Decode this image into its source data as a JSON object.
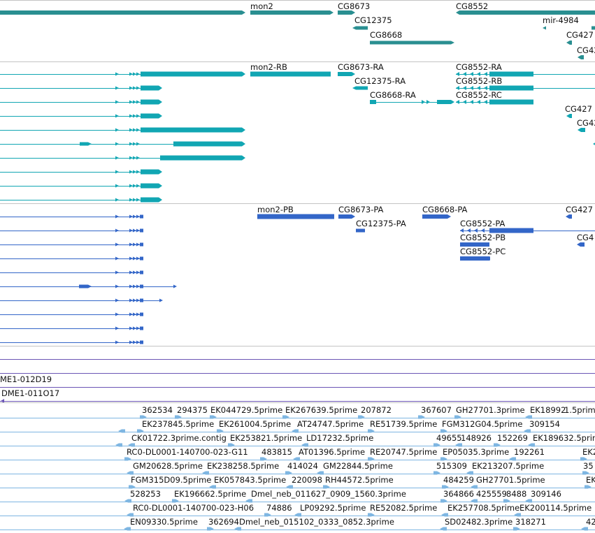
{
  "colors": {
    "gene": "#2a8f91",
    "transcript": "#11a6b3",
    "protein": "#3366c8",
    "est": "#7eb6e2",
    "clone": "#6b55b5",
    "separator": "#c4c4c4",
    "text": "#111111"
  },
  "tracks": {
    "genes": {
      "labels": [
        "mon2",
        "CG8673",
        "CG8552",
        "CG12375",
        "mir-4984",
        "CG8668",
        "CG427",
        "CG42"
      ]
    },
    "transcripts": {
      "labels": [
        "mon2-RB",
        "CG8673-RA",
        "CG8552-RA",
        "CG12375-RA",
        "CG8552-RB",
        "CG8668-RA",
        "CG8552-RC",
        "CG427",
        "CG42"
      ]
    },
    "proteins": {
      "labels": [
        "mon2-PB",
        "CG8673-PA",
        "CG8668-PA",
        "CG427",
        "CG12375-PA",
        "CG8552-PA",
        "CG4",
        "CG8552-PB",
        "CG8552-PC"
      ]
    },
    "clones": {
      "labels": [
        "ME1-012D19",
        "DME1-011O17"
      ]
    },
    "ests": {
      "rows": [
        [
          "362534",
          "294375",
          "EK044729.5prime",
          "EK267639.5prime",
          "207872",
          "367607",
          "GH27701.3prime",
          "EK18992",
          "1.5prime"
        ],
        [
          "EK237845.5prime",
          "EK261004.5prime",
          "AT24747.5prime",
          "RE51739.5prime",
          "FGM312G04.5prime",
          "309154"
        ],
        [
          "CK01722.3prime.contig",
          "EK253821.5prime",
          "LD17232.5prime",
          "49655",
          "148926",
          "152269",
          "EK189632.5prime"
        ],
        [
          "RC0-DL0001-140700-023-G11",
          "483815",
          "AT01396.5prime",
          "RE20747.5prime",
          "EP05035.3prime",
          "192261",
          "EK2"
        ],
        [
          "GM20628.5prime",
          "EK238258.5prime",
          "414024",
          "GM22844.5prime",
          "515309",
          "EK213207.5prime",
          "35"
        ],
        [
          "FGM315D09.5prime",
          "EK057843.5prime",
          "220098",
          "RH44572.5prime",
          "484259",
          "GH27701.5prime",
          "EK"
        ],
        [
          "528253",
          "EK196662.5prime",
          "Dmel_neb_011627_0909_1560.3prime",
          "364866",
          "425559",
          "8488",
          "309146"
        ],
        [
          "RC0-DL0001-140700-023-H06",
          "74886",
          "LP09292.5prime",
          "RE52082.5prime",
          "EK257708.5prime",
          "EK200114.5prime"
        ],
        [
          "EN09330.5prime",
          "362694",
          "Dmel_neb_015102_0333_0852.3prime",
          "SD02482.3prime",
          "318271",
          "42"
        ]
      ]
    }
  }
}
